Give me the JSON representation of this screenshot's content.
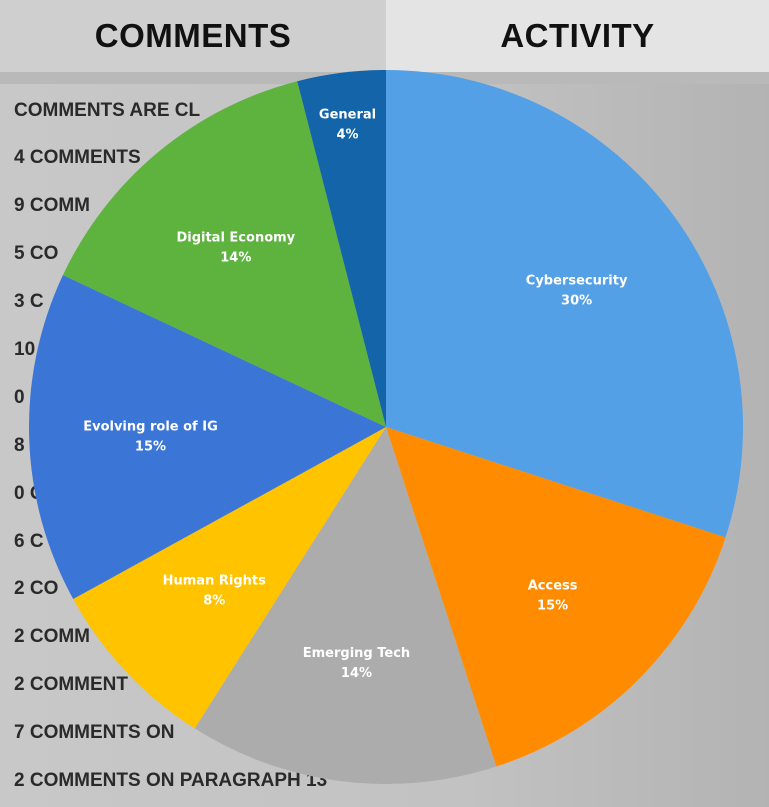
{
  "tabs": {
    "comments": "COMMENTS",
    "activity": "ACTIVITY"
  },
  "comment_list": [
    "COMMENTS ARE CL",
    "4 COMMENTS",
    "9 COMM",
    "5 CO",
    "3 C",
    "10",
    "0",
    "8",
    "0 C",
    "6 C",
    "2 CO",
    "2 COMM",
    "2 COMMENT",
    "7 COMMENTS ON",
    "2 COMMENTS ON PARAGRAPH 13"
  ],
  "chart_data": {
    "type": "pie",
    "slices": [
      {
        "label": "Cybersecurity",
        "value": 30,
        "percent_label": "30%",
        "color": "#54a0e6"
      },
      {
        "label": "Access",
        "value": 15,
        "percent_label": "15%",
        "color": "#ff8c00"
      },
      {
        "label": "Emerging Tech",
        "value": 14,
        "percent_label": "14%",
        "color": "#acacac"
      },
      {
        "label": "Human Rights",
        "value": 8,
        "percent_label": "8%",
        "color": "#ffc300"
      },
      {
        "label": "Evolving role of IG",
        "value": 15,
        "percent_label": "15%",
        "color": "#3b75d6"
      },
      {
        "label": "Digital Economy",
        "value": 14,
        "percent_label": "14%",
        "color": "#5db33e"
      },
      {
        "label": "General",
        "value": 4,
        "percent_label": "4%",
        "color": "#1464aa"
      }
    ]
  }
}
